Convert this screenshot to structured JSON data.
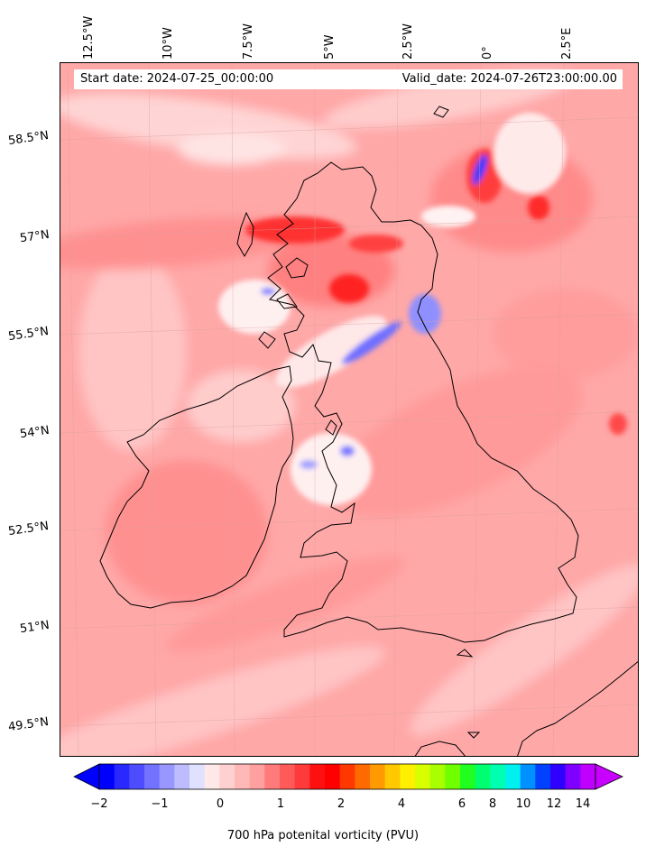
{
  "map": {
    "start_label": "Start date: 2024-07-25_00:00:00",
    "valid_label": "Valid_date: 2024-07-26T23:00:00.00",
    "lon_ticks": [
      "12.5°W",
      "10°W",
      "7.5°W",
      "5°W",
      "2.5°W",
      "0°",
      "2.5°E"
    ],
    "lat_ticks": [
      "58.5°N",
      "57°N",
      "55.5°N",
      "54°N",
      "52.5°N",
      "51°N",
      "49.5°N"
    ]
  },
  "colorbar": {
    "label": "700 hPa potenital vorticity (PVU)",
    "tick_labels": [
      "−2",
      "−1",
      "0",
      "1",
      "2",
      "4",
      "6",
      "8",
      "10",
      "12",
      "14"
    ],
    "colors": [
      "#0000ff",
      "#2828ff",
      "#4d4dff",
      "#7272ff",
      "#9797ff",
      "#bcbcff",
      "#e0e0ff",
      "#ffe8e8",
      "#ffd0d0",
      "#ffb8b8",
      "#ffa0a0",
      "#ff7a7a",
      "#ff5a5a",
      "#ff3a3a",
      "#ff1010",
      "#ff0000",
      "#ff3800",
      "#ff6a00",
      "#ff9a00",
      "#ffc800",
      "#fff000",
      "#d8ff00",
      "#a8ff00",
      "#70ff00",
      "#20ff20",
      "#00ff70",
      "#00ffb0",
      "#00f0f0",
      "#0090ff",
      "#0040ff",
      "#3000ff",
      "#8000ff",
      "#c000ff"
    ],
    "extend_low": "#0000ff",
    "extend_high": "#c800ff"
  }
}
